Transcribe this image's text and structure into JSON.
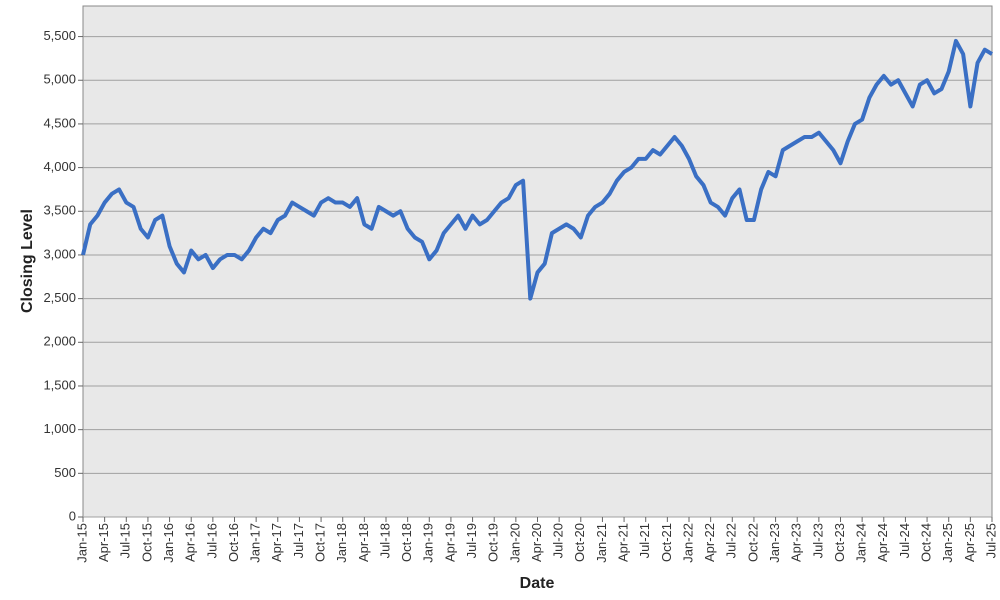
{
  "chart_data": {
    "type": "line",
    "x_label": "Date",
    "y_label": "Closing Level",
    "x": [
      "2015-01",
      "2015-02",
      "2015-03",
      "2015-04",
      "2015-05",
      "2015-06",
      "2015-07",
      "2015-08",
      "2015-09",
      "2015-10",
      "2015-11",
      "2015-12",
      "2016-01",
      "2016-02",
      "2016-03",
      "2016-04",
      "2016-05",
      "2016-06",
      "2016-07",
      "2016-08",
      "2016-09",
      "2016-10",
      "2016-11",
      "2016-12",
      "2017-01",
      "2017-02",
      "2017-03",
      "2017-04",
      "2017-05",
      "2017-06",
      "2017-07",
      "2017-08",
      "2017-09",
      "2017-10",
      "2017-11",
      "2017-12",
      "2018-01",
      "2018-02",
      "2018-03",
      "2018-04",
      "2018-05",
      "2018-06",
      "2018-07",
      "2018-08",
      "2018-09",
      "2018-10",
      "2018-11",
      "2018-12",
      "2019-01",
      "2019-02",
      "2019-03",
      "2019-04",
      "2019-05",
      "2019-06",
      "2019-07",
      "2019-08",
      "2019-09",
      "2019-10",
      "2019-11",
      "2019-12",
      "2020-01",
      "2020-02",
      "2020-03",
      "2020-04",
      "2020-05",
      "2020-06",
      "2020-07",
      "2020-08",
      "2020-09",
      "2020-10",
      "2020-11",
      "2020-12",
      "2021-01",
      "2021-02",
      "2021-03",
      "2021-04",
      "2021-05",
      "2021-06",
      "2021-07",
      "2021-08",
      "2021-09",
      "2021-10",
      "2021-11",
      "2021-12",
      "2022-01",
      "2022-02",
      "2022-03",
      "2022-04",
      "2022-05",
      "2022-06",
      "2022-07",
      "2022-08",
      "2022-09",
      "2022-10",
      "2022-11",
      "2022-12",
      "2023-01",
      "2023-02",
      "2023-03",
      "2023-04",
      "2023-05",
      "2023-06",
      "2023-07",
      "2023-08",
      "2023-09",
      "2023-10",
      "2023-11",
      "2023-12",
      "2024-01",
      "2024-02",
      "2024-03",
      "2024-04",
      "2024-05",
      "2024-06",
      "2024-07",
      "2024-08",
      "2024-09",
      "2024-10",
      "2024-11",
      "2024-12",
      "2025-01",
      "2025-02",
      "2025-03",
      "2025-04",
      "2025-05",
      "2025-06",
      "2025-07"
    ],
    "values": [
      3000,
      3350,
      3450,
      3600,
      3700,
      3750,
      3600,
      3550,
      3300,
      3200,
      3400,
      3450,
      3100,
      2900,
      2800,
      3050,
      2950,
      3000,
      2850,
      2950,
      3000,
      3000,
      2950,
      3050,
      3200,
      3300,
      3250,
      3400,
      3450,
      3600,
      3550,
      3500,
      3450,
      3600,
      3650,
      3600,
      3600,
      3550,
      3650,
      3350,
      3300,
      3550,
      3500,
      3450,
      3500,
      3300,
      3200,
      3150,
      2950,
      3050,
      3250,
      3350,
      3450,
      3300,
      3450,
      3350,
      3400,
      3500,
      3600,
      3650,
      3800,
      3850,
      2500,
      2800,
      2900,
      3250,
      3300,
      3350,
      3300,
      3200,
      3450,
      3550,
      3600,
      3700,
      3850,
      3950,
      4000,
      4100,
      4100,
      4200,
      4150,
      4250,
      4350,
      4250,
      4100,
      3900,
      3800,
      3600,
      3550,
      3450,
      3650,
      3750,
      3400,
      3400,
      3750,
      3950,
      3900,
      4200,
      4250,
      4300,
      4350,
      4350,
      4400,
      4300,
      4200,
      4050,
      4300,
      4500,
      4550,
      4800,
      4950,
      5050,
      4950,
      5000,
      4850,
      4700,
      4950,
      5000,
      4850,
      4900,
      5100,
      5450,
      5300,
      4700,
      5200,
      5350,
      5300
    ],
    "color": "#3a6fc4",
    "xlim": [
      "2015-01",
      "2025-07"
    ],
    "xticks": [
      {
        "value": "2015-01",
        "label": "Jan-15"
      },
      {
        "value": "2015-04",
        "label": "Apr-15"
      },
      {
        "value": "2015-07",
        "label": "Jul-15"
      },
      {
        "value": "2015-10",
        "label": "Oct-15"
      },
      {
        "value": "2016-01",
        "label": "Jan-16"
      },
      {
        "value": "2016-04",
        "label": "Apr-16"
      },
      {
        "value": "2016-07",
        "label": "Jul-16"
      },
      {
        "value": "2016-10",
        "label": "Oct-16"
      },
      {
        "value": "2017-01",
        "label": "Jan-17"
      },
      {
        "value": "2017-04",
        "label": "Apr-17"
      },
      {
        "value": "2017-07",
        "label": "Jul-17"
      },
      {
        "value": "2017-10",
        "label": "Oct-17"
      },
      {
        "value": "2018-01",
        "label": "Jan-18"
      },
      {
        "value": "2018-04",
        "label": "Apr-18"
      },
      {
        "value": "2018-07",
        "label": "Jul-18"
      },
      {
        "value": "2018-10",
        "label": "Oct-18"
      },
      {
        "value": "2019-01",
        "label": "Jan-19"
      },
      {
        "value": "2019-04",
        "label": "Apr-19"
      },
      {
        "value": "2019-07",
        "label": "Jul-19"
      },
      {
        "value": "2019-10",
        "label": "Oct-19"
      },
      {
        "value": "2020-01",
        "label": "Jan-20"
      },
      {
        "value": "2020-04",
        "label": "Apr-20"
      },
      {
        "value": "2020-07",
        "label": "Jul-20"
      },
      {
        "value": "2020-10",
        "label": "Oct-20"
      },
      {
        "value": "2021-01",
        "label": "Jan-21"
      },
      {
        "value": "2021-04",
        "label": "Apr-21"
      },
      {
        "value": "2021-07",
        "label": "Jul-21"
      },
      {
        "value": "2021-10",
        "label": "Oct-21"
      },
      {
        "value": "2022-01",
        "label": "Jan-22"
      },
      {
        "value": "2022-04",
        "label": "Apr-22"
      },
      {
        "value": "2022-07",
        "label": "Jul-22"
      },
      {
        "value": "2022-10",
        "label": "Oct-22"
      },
      {
        "value": "2023-01",
        "label": "Jan-23"
      },
      {
        "value": "2023-04",
        "label": "Apr-23"
      },
      {
        "value": "2023-07",
        "label": "Jul-23"
      },
      {
        "value": "2023-10",
        "label": "Oct-23"
      },
      {
        "value": "2024-01",
        "label": "Jan-24"
      },
      {
        "value": "2024-04",
        "label": "Apr-24"
      },
      {
        "value": "2024-07",
        "label": "Jul-24"
      },
      {
        "value": "2024-10",
        "label": "Oct-24"
      },
      {
        "value": "2025-01",
        "label": "Jan-25"
      },
      {
        "value": "2025-04",
        "label": "Apr-25"
      },
      {
        "value": "2025-07",
        "label": "Jul-25"
      }
    ],
    "ylim": [
      0,
      5850
    ],
    "yticks": [
      0,
      500,
      {
        "value": 1000,
        "label": "1,000"
      },
      {
        "value": 1500,
        "label": "1,500"
      },
      {
        "value": 2000,
        "label": "2,000"
      },
      {
        "value": 2500,
        "label": "2,500"
      },
      {
        "value": 3000,
        "label": "3,000"
      },
      {
        "value": 3500,
        "label": "3,500"
      },
      {
        "value": 4000,
        "label": "4,000"
      },
      {
        "value": 4500,
        "label": "4,500"
      },
      {
        "value": 5000,
        "label": "5,000"
      },
      {
        "value": 5500,
        "label": "5,500"
      }
    ],
    "grid": true
  }
}
